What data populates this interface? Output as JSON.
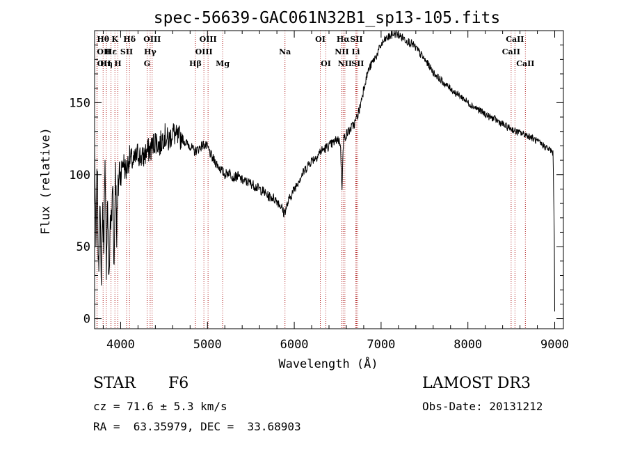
{
  "chart_data": {
    "type": "line",
    "title": "spec-56639-GAC061N32B1_sp13-105.fits",
    "xlabel": "Wavelength (Å)",
    "ylabel": "Flux (relative)",
    "xlim": [
      3700,
      9100
    ],
    "ylim": [
      -7,
      200
    ],
    "xticks": [
      4000,
      5000,
      6000,
      7000,
      8000,
      9000
    ],
    "yticks": [
      0,
      50,
      100,
      150
    ],
    "spectrum": {
      "name": "flux",
      "x": [
        3700,
        3715,
        3730,
        3745,
        3760,
        3775,
        3790,
        3805,
        3820,
        3835,
        3850,
        3865,
        3880,
        3895,
        3910,
        3925,
        3940,
        3955,
        3970,
        3985,
        4000,
        4030,
        4060,
        4100,
        4150,
        4200,
        4250,
        4300,
        4350,
        4400,
        4450,
        4500,
        4550,
        4600,
        4650,
        4700,
        4750,
        4800,
        4850,
        4900,
        4950,
        5000,
        5050,
        5100,
        5150,
        5200,
        5250,
        5300,
        5350,
        5400,
        5450,
        5500,
        5550,
        5600,
        5650,
        5700,
        5750,
        5800,
        5850,
        5880,
        5900,
        5950,
        6000,
        6050,
        6100,
        6150,
        6200,
        6250,
        6300,
        6350,
        6400,
        6450,
        6500,
        6530,
        6550,
        6562,
        6570,
        6600,
        6650,
        6700,
        6750,
        6800,
        6850,
        6900,
        6950,
        7000,
        7050,
        7100,
        7150,
        7200,
        7250,
        7300,
        7350,
        7400,
        7450,
        7500,
        7550,
        7600,
        7650,
        7700,
        7750,
        7800,
        7850,
        7900,
        7950,
        8000,
        8050,
        8100,
        8150,
        8200,
        8250,
        8300,
        8350,
        8400,
        8450,
        8500,
        8550,
        8600,
        8650,
        8700,
        8750,
        8800,
        8850,
        8900,
        8950,
        8980,
        8995,
        9000
      ],
      "y": [
        120,
        45,
        108,
        30,
        90,
        22,
        75,
        55,
        100,
        40,
        85,
        20,
        70,
        65,
        95,
        35,
        110,
        60,
        88,
        105,
        100,
        110,
        102,
        112,
        108,
        115,
        111,
        116,
        118,
        124,
        120,
        128,
        123,
        130,
        125,
        126,
        122,
        120,
        116,
        118,
        121,
        119,
        112,
        108,
        104,
        100,
        102,
        98,
        99,
        96,
        95,
        94,
        92,
        90,
        88,
        85,
        84,
        82,
        78,
        73,
        76,
        84,
        90,
        96,
        101,
        106,
        110,
        112,
        116,
        118,
        120,
        122,
        125,
        122,
        92,
        115,
        125,
        128,
        132,
        136,
        145,
        160,
        172,
        178,
        183,
        190,
        194,
        196,
        198,
        197,
        195,
        193,
        191,
        188,
        184,
        180,
        176,
        171,
        168,
        165,
        162,
        160,
        157,
        155,
        153,
        150,
        148,
        146,
        144,
        142,
        140,
        139,
        137,
        135,
        133,
        132,
        130,
        129,
        128,
        127,
        125,
        123,
        121,
        119,
        117,
        115,
        60,
        5
      ]
    },
    "lines": [
      {
        "label": "Hθ",
        "wl": 3798,
        "row": 0,
        "align": "middle"
      },
      {
        "label": "OII",
        "wl": 3727,
        "row": 1,
        "align": "start"
      },
      {
        "label": "OII",
        "wl": 3729,
        "row": 2,
        "align": "start"
      },
      {
        "label": "K",
        "wl": 3934,
        "row": 0,
        "align": "middle"
      },
      {
        "label": "Hε",
        "wl": 3889,
        "row": 1,
        "align": "middle"
      },
      {
        "label": "Hη",
        "wl": 3835,
        "row": 2,
        "align": "middle"
      },
      {
        "label": "H",
        "wl": 3968,
        "row": 2,
        "align": "middle"
      },
      {
        "label": "SII",
        "wl": 4069,
        "row": 1,
        "align": "middle"
      },
      {
        "label": "Hδ",
        "wl": 4102,
        "row": 0,
        "align": "middle"
      },
      {
        "label": "OIII",
        "wl": 4363,
        "row": 0,
        "align": "middle"
      },
      {
        "label": "Hγ",
        "wl": 4340,
        "row": 1,
        "align": "middle"
      },
      {
        "label": "G",
        "wl": 4305,
        "row": 2,
        "align": "middle"
      },
      {
        "label": "Hβ",
        "wl": 4861,
        "row": 2,
        "align": "middle"
      },
      {
        "label": "OIII",
        "wl": 5007,
        "row": 0,
        "align": "middle"
      },
      {
        "label": "OIII",
        "wl": 4959,
        "row": 1,
        "align": "middle"
      },
      {
        "label": "Mg",
        "wl": 5175,
        "row": 2,
        "align": "middle"
      },
      {
        "label": "Na",
        "wl": 5893,
        "row": 1,
        "align": "middle"
      },
      {
        "label": "OI",
        "wl": 6300,
        "row": 0,
        "align": "middle"
      },
      {
        "label": "OI",
        "wl": 6364,
        "row": 2,
        "align": "middle"
      },
      {
        "label": "Hα",
        "wl": 6563,
        "row": 0,
        "align": "middle"
      },
      {
        "label": "NII",
        "wl": 6548,
        "row": 1,
        "align": "middle"
      },
      {
        "label": "NII",
        "wl": 6583,
        "row": 2,
        "align": "middle"
      },
      {
        "label": "SII",
        "wl": 6716,
        "row": 0,
        "align": "middle"
      },
      {
        "label": "Li",
        "wl": 6708,
        "row": 1,
        "align": "middle"
      },
      {
        "label": "SII",
        "wl": 6731,
        "row": 2,
        "align": "middle"
      },
      {
        "label": "CaII",
        "wl": 8542,
        "row": 0,
        "align": "middle"
      },
      {
        "label": "CaII",
        "wl": 8498,
        "row": 1,
        "align": "middle"
      },
      {
        "label": "CaII",
        "wl": 8662,
        "row": 2,
        "align": "middle"
      }
    ]
  },
  "info": {
    "object_class": "STAR",
    "subclass": "F6",
    "survey": "LAMOST DR3",
    "redshift": "cz = 71.6 ± 5.3 km/s",
    "obs_date": "Obs-Date: 20131212",
    "coords": "RA =  63.35979, DEC =  33.68903"
  },
  "colors": {
    "spectrum": "#000000",
    "line_marker": "#b22222"
  }
}
